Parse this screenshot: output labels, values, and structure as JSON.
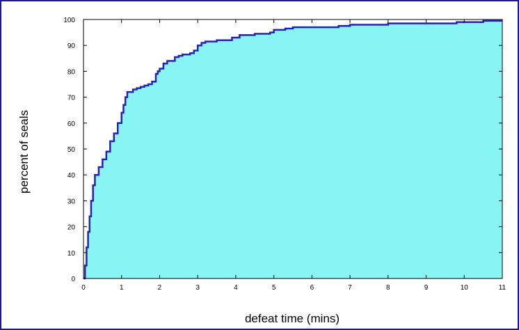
{
  "chart_data": {
    "type": "area",
    "xlabel": "defeat time (mins)",
    "ylabel": "percent of seals",
    "xlim": [
      0,
      11
    ],
    "ylim": [
      0,
      100
    ],
    "x_ticks": [
      0,
      1,
      2,
      3,
      4,
      5,
      6,
      7,
      8,
      9,
      10,
      11
    ],
    "y_ticks": [
      0,
      10,
      20,
      30,
      40,
      50,
      60,
      70,
      80,
      90,
      100
    ],
    "grid": false,
    "colors": {
      "fill": "#88F4F4",
      "line": "#2222BB",
      "axes": "#000000",
      "border": "#1A1A8C"
    },
    "series": [
      {
        "x": [
          0.0,
          0.04,
          0.08,
          0.12,
          0.16,
          0.2,
          0.25,
          0.3,
          0.4,
          0.5,
          0.6,
          0.7,
          0.8,
          0.9,
          1.0,
          1.05,
          1.1,
          1.15,
          1.2,
          1.3,
          1.4,
          1.5,
          1.6,
          1.7,
          1.8,
          1.9,
          1.95,
          2.0,
          2.1,
          2.2,
          2.4,
          2.5,
          2.6,
          2.8,
          2.9,
          3.0,
          3.1,
          3.2,
          3.5,
          3.7,
          3.9,
          4.1,
          4.5,
          4.9,
          5.0,
          5.3,
          5.5,
          6.0,
          6.7,
          7.0,
          7.8,
          8.0,
          9.0,
          9.8,
          10.0,
          10.5,
          11.0
        ],
        "y": [
          0,
          5,
          12,
          18,
          24,
          30,
          36,
          40,
          43,
          46,
          49,
          53,
          56,
          60,
          64,
          67,
          70,
          72,
          72,
          73,
          73.5,
          74,
          74.5,
          75,
          76,
          79,
          80,
          81,
          83,
          84,
          85.5,
          86,
          86.5,
          87,
          88,
          90,
          91,
          91.5,
          92,
          92,
          93,
          94,
          94.5,
          95,
          96,
          96.5,
          97,
          97,
          97.5,
          98,
          98,
          98.5,
          98.5,
          99,
          99,
          99.5,
          99.5
        ]
      }
    ]
  }
}
